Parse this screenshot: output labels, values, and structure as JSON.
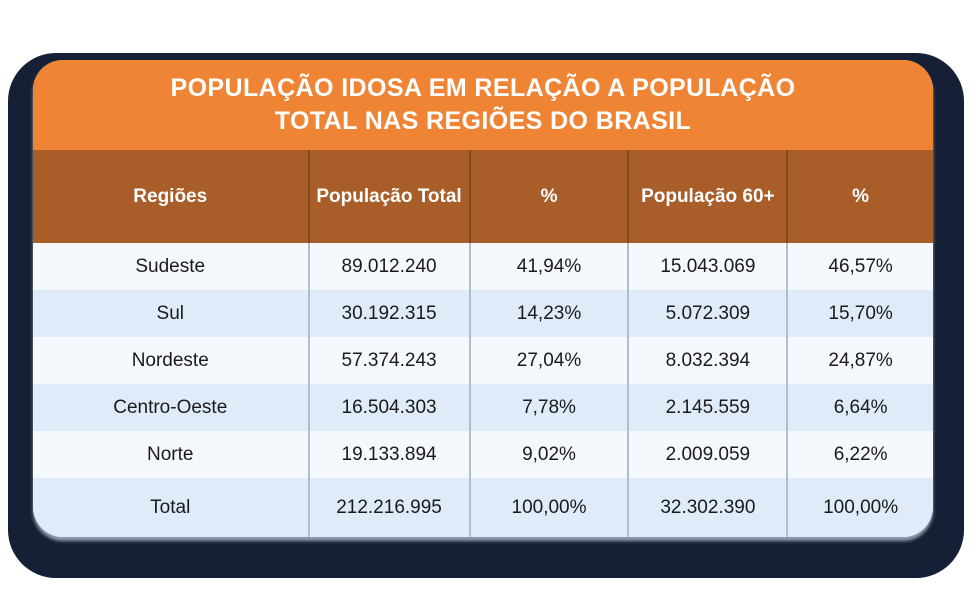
{
  "colors": {
    "page_background": "#ffffff",
    "frame_navy": "#151F35",
    "title_orange": "#EF8434",
    "header_brown": "#A95D28",
    "row_light": "#F5F9FE",
    "row_blue": "#E0EBFA",
    "divider_gray": "#B2BDC9",
    "text_dark": "#1a1a1a",
    "text_white": "#ffffff"
  },
  "title": {
    "line1": "POPULAÇÃO IDOSA EM RELAÇÃO A POPULAÇÃO",
    "line2": "TOTAL NAS REGIÕES DO BRASIL"
  },
  "table": {
    "header": {
      "regioes": "Regiões",
      "pop_total": "População Total",
      "pct_total": "%",
      "pop_60": "População 60+",
      "pct_60": "%"
    },
    "rows": [
      {
        "region": "Sudeste",
        "pop_total": "89.012.240",
        "pct_total": "41,94%",
        "pop_60": "15.043.069",
        "pct_60": "46,57%"
      },
      {
        "region": "Sul",
        "pop_total": "30.192.315",
        "pct_total": "14,23%",
        "pop_60": "5.072.309",
        "pct_60": "15,70%"
      },
      {
        "region": "Nordeste",
        "pop_total": "57.374.243",
        "pct_total": "27,04%",
        "pop_60": "8.032.394",
        "pct_60": "24,87%"
      },
      {
        "region": "Centro-Oeste",
        "pop_total": "16.504.303",
        "pct_total": "7,78%",
        "pop_60": "2.145.559",
        "pct_60": "6,64%"
      },
      {
        "region": "Norte",
        "pop_total": "19.133.894",
        "pct_total": "9,02%",
        "pop_60": "2.009.059",
        "pct_60": "6,22%"
      }
    ],
    "total": {
      "region": "Total",
      "pop_total": "212.216.995",
      "pct_total": "100,00%",
      "pop_60": "32.302.390",
      "pct_60": "100,00%"
    }
  },
  "chart_data": {
    "type": "table",
    "title": "POPULAÇÃO IDOSA EM RELAÇÃO A POPULAÇÃO TOTAL NAS REGIÕES DO BRASIL",
    "columns": [
      "Regiões",
      "População Total",
      "%",
      "População 60+",
      "%"
    ],
    "rows": [
      [
        "Sudeste",
        "89.012.240",
        "41,94%",
        "15.043.069",
        "46,57%"
      ],
      [
        "Sul",
        "30.192.315",
        "14,23%",
        "5.072.309",
        "15,70%"
      ],
      [
        "Nordeste",
        "57.374.243",
        "27,04%",
        "8.032.394",
        "24,87%"
      ],
      [
        "Centro-Oeste",
        "16.504.303",
        "7,78%",
        "2.145.559",
        "6,64%"
      ],
      [
        "Norte",
        "19.133.894",
        "9,02%",
        "2.009.059",
        "6,22%"
      ],
      [
        "Total",
        "212.216.995",
        "100,00%",
        "32.302.390",
        "100,00%"
      ]
    ]
  }
}
